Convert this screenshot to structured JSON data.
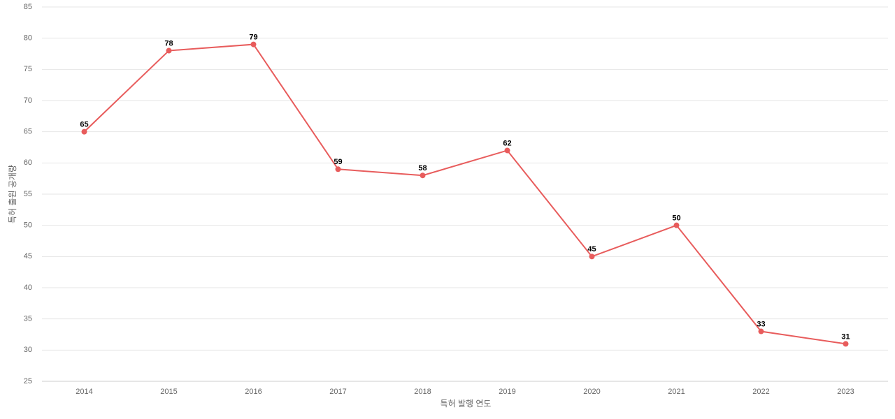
{
  "chart_data": {
    "type": "line",
    "x_label": "특허 발행 연도",
    "y_label": "특허 출원 공개량",
    "categories": [
      "2014",
      "2015",
      "2016",
      "2017",
      "2018",
      "2019",
      "2020",
      "2021",
      "2022",
      "2023"
    ],
    "values": [
      65,
      78,
      79,
      59,
      58,
      62,
      45,
      50,
      33,
      31
    ],
    "color": "#e85c5c",
    "ylim": [
      25,
      85
    ],
    "yticks": [
      25,
      30,
      35,
      40,
      45,
      50,
      55,
      60,
      65,
      70,
      75,
      80,
      85
    ],
    "grid": true
  }
}
